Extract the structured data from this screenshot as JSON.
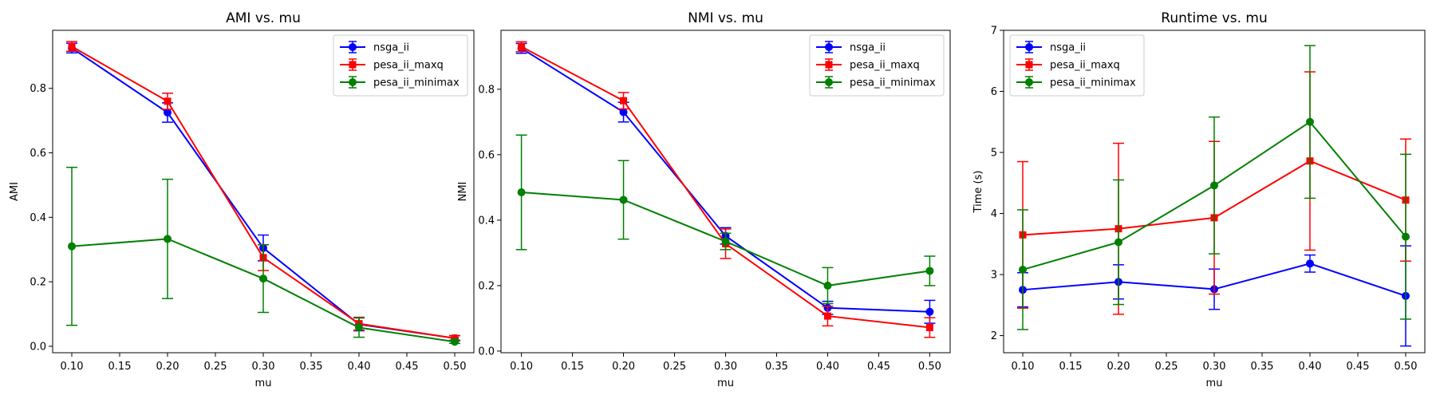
{
  "chart_data": [
    {
      "type": "line",
      "title": "AMI vs. mu",
      "xlabel": "mu",
      "ylabel": "AMI",
      "xlim": [
        0.08,
        0.52
      ],
      "ylim": [
        -0.02,
        0.98
      ],
      "xticks": [
        "0.10",
        "0.15",
        "0.20",
        "0.25",
        "0.30",
        "0.35",
        "0.40",
        "0.45",
        "0.50"
      ],
      "yticks": [
        "0.0",
        "0.2",
        "0.4",
        "0.6",
        "0.8"
      ],
      "legend_position": "top-right",
      "x": [
        0.1,
        0.2,
        0.3,
        0.4,
        0.5
      ],
      "series": [
        {
          "name": "nsga_ii",
          "color": "#0000ff",
          "marker": "circle",
          "values": [
            0.925,
            0.725,
            0.305,
            0.068,
            0.025
          ],
          "errors": [
            0.015,
            0.03,
            0.04,
            0.02,
            0.008
          ]
        },
        {
          "name": "pesa_ii_maxq",
          "color": "#ff0000",
          "marker": "square",
          "values": [
            0.93,
            0.76,
            0.275,
            0.07,
            0.025
          ],
          "errors": [
            0.015,
            0.025,
            0.04,
            0.02,
            0.008
          ]
        },
        {
          "name": "pesa_ii_minimax",
          "color": "#008000",
          "marker": "circle",
          "values": [
            0.31,
            0.333,
            0.21,
            0.058,
            0.014
          ],
          "errors": [
            0.245,
            0.185,
            0.105,
            0.03,
            0.005
          ]
        }
      ]
    },
    {
      "type": "line",
      "title": "NMI vs. mu",
      "xlabel": "mu",
      "ylabel": "NMI",
      "xlim": [
        0.08,
        0.52
      ],
      "ylim": [
        -0.005,
        0.98
      ],
      "xticks": [
        "0.10",
        "0.15",
        "0.20",
        "0.25",
        "0.30",
        "0.35",
        "0.40",
        "0.45",
        "0.50"
      ],
      "yticks": [
        "0.0",
        "0.2",
        "0.4",
        "0.6",
        "0.8"
      ],
      "legend_position": "top-right",
      "x": [
        0.1,
        0.2,
        0.3,
        0.4,
        0.5
      ],
      "series": [
        {
          "name": "nsga_ii",
          "color": "#0000ff",
          "marker": "circle",
          "values": [
            0.925,
            0.73,
            0.352,
            0.132,
            0.12
          ],
          "errors": [
            0.015,
            0.03,
            0.025,
            0.02,
            0.035
          ]
        },
        {
          "name": "pesa_ii_maxq",
          "color": "#ff0000",
          "marker": "square",
          "values": [
            0.93,
            0.765,
            0.328,
            0.107,
            0.072
          ],
          "errors": [
            0.015,
            0.025,
            0.045,
            0.03,
            0.03
          ]
        },
        {
          "name": "pesa_ii_minimax",
          "color": "#008000",
          "marker": "circle",
          "values": [
            0.485,
            0.462,
            0.335,
            0.2,
            0.245
          ],
          "errors": [
            0.175,
            0.12,
            0.025,
            0.055,
            0.045
          ]
        }
      ]
    },
    {
      "type": "line",
      "title": "Runtime vs. mu",
      "xlabel": "mu",
      "ylabel": "Time (s)",
      "xlim": [
        0.08,
        0.52
      ],
      "ylim": [
        1.72,
        7.0
      ],
      "xticks": [
        "0.10",
        "0.15",
        "0.20",
        "0.25",
        "0.30",
        "0.35",
        "0.40",
        "0.45",
        "0.50"
      ],
      "yticks": [
        "2",
        "3",
        "4",
        "5",
        "6",
        "7"
      ],
      "legend_position": "top-left",
      "x": [
        0.1,
        0.2,
        0.3,
        0.4,
        0.5
      ],
      "series": [
        {
          "name": "nsga_ii",
          "color": "#0000ff",
          "marker": "circle",
          "values": [
            2.75,
            2.88,
            2.76,
            3.18,
            2.65
          ],
          "errors": [
            0.28,
            0.28,
            0.33,
            0.14,
            0.82
          ]
        },
        {
          "name": "pesa_ii_maxq",
          "color": "#ff0000",
          "marker": "square",
          "values": [
            3.65,
            3.75,
            3.93,
            4.86,
            4.22
          ],
          "errors": [
            1.2,
            1.4,
            1.25,
            1.46,
            1.0
          ]
        },
        {
          "name": "pesa_ii_minimax",
          "color": "#008000",
          "marker": "circle",
          "values": [
            3.08,
            3.53,
            4.46,
            5.5,
            3.62
          ],
          "errors": [
            0.98,
            1.02,
            1.12,
            1.25,
            1.35
          ]
        }
      ]
    }
  ]
}
